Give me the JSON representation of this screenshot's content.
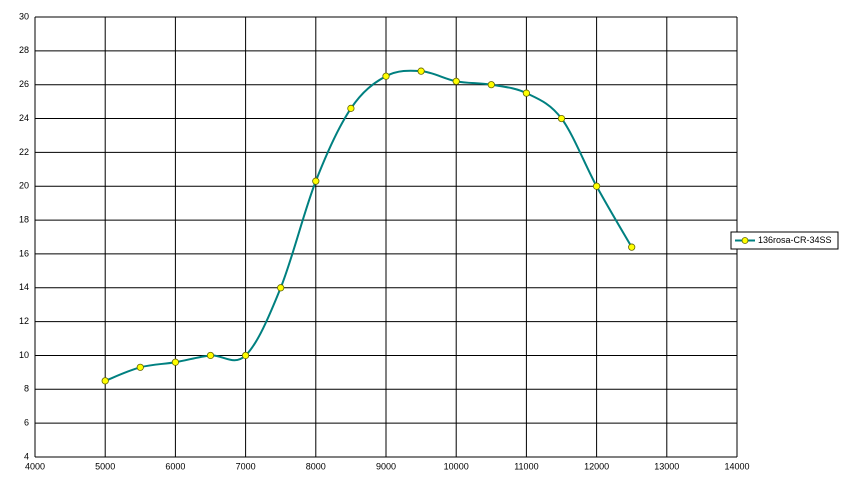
{
  "chart_data": {
    "type": "line",
    "x": [
      5000,
      5500,
      6000,
      6500,
      7000,
      7500,
      8000,
      8500,
      9000,
      9500,
      10000,
      10500,
      11000,
      11500,
      12000,
      12500
    ],
    "series": [
      {
        "name": "136rosa-CR-34SS",
        "color": "#008080",
        "marker_color": "#ffff00",
        "values": [
          8.5,
          9.3,
          9.6,
          10.0,
          10.0,
          14.0,
          20.3,
          24.6,
          26.5,
          26.8,
          26.2,
          26.0,
          25.5,
          24.0,
          20.0,
          16.4
        ]
      }
    ],
    "xlim": [
      4000,
      14000
    ],
    "xticks": [
      4000,
      5000,
      6000,
      7000,
      8000,
      9000,
      10000,
      11000,
      12000,
      13000,
      14000
    ],
    "ylim": [
      4,
      30
    ],
    "yticks": [
      4,
      6,
      8,
      10,
      12,
      14,
      16,
      18,
      20,
      22,
      24,
      26,
      28,
      30
    ],
    "grid": true,
    "smooth": true,
    "legend": "right"
  }
}
